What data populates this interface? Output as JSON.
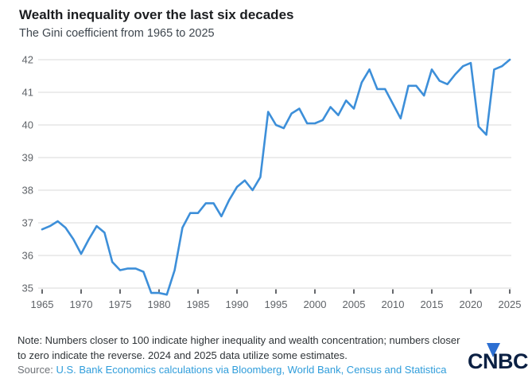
{
  "header": {
    "title": "Wealth inequality over the last six decades",
    "subtitle": "The Gini coefficient from 1965 to 2025"
  },
  "chart_data": {
    "type": "line",
    "title": "Wealth inequality over the last six decades",
    "subtitle": "The Gini coefficient from 1965 to 2025",
    "series_name": "Gini coefficient",
    "x": [
      1965,
      1966,
      1967,
      1968,
      1969,
      1970,
      1971,
      1972,
      1973,
      1974,
      1975,
      1976,
      1977,
      1978,
      1979,
      1980,
      1981,
      1982,
      1983,
      1984,
      1985,
      1986,
      1987,
      1988,
      1989,
      1990,
      1991,
      1992,
      1993,
      1994,
      1995,
      1996,
      1997,
      1998,
      1999,
      2000,
      2001,
      2002,
      2003,
      2004,
      2005,
      2006,
      2007,
      2008,
      2009,
      2010,
      2011,
      2012,
      2013,
      2014,
      2015,
      2016,
      2017,
      2018,
      2019,
      2020,
      2021,
      2022,
      2023,
      2024,
      2025
    ],
    "values": [
      36.8,
      36.9,
      37.05,
      36.85,
      36.5,
      36.05,
      36.5,
      36.9,
      36.7,
      35.8,
      35.55,
      35.6,
      35.6,
      35.5,
      34.85,
      34.85,
      34.8,
      35.55,
      36.85,
      37.3,
      37.3,
      37.6,
      37.6,
      37.2,
      37.7,
      38.1,
      38.3,
      38.0,
      38.4,
      40.4,
      40.0,
      39.9,
      40.35,
      40.5,
      40.05,
      40.05,
      40.15,
      40.55,
      40.3,
      40.75,
      40.5,
      41.3,
      41.7,
      41.1,
      41.1,
      40.65,
      40.2,
      41.2,
      41.2,
      40.9,
      41.7,
      41.35,
      41.25,
      41.55,
      41.8,
      41.9,
      39.95,
      39.7,
      41.7,
      41.8,
      42.0
    ],
    "xticks": [
      1965,
      1970,
      1975,
      1980,
      1985,
      1990,
      1995,
      2000,
      2005,
      2010,
      2015,
      2020,
      2025
    ],
    "yticks": [
      35,
      36,
      37,
      38,
      39,
      40,
      41,
      42
    ],
    "xlim": [
      1965,
      2025
    ],
    "ylim": [
      34.5,
      42.3
    ],
    "grid": "horizontal",
    "legend": "none",
    "line_color": "#3d8fd9",
    "gridline_color": "#d9d9d9",
    "axis_text_color": "#5f6368",
    "tick_mark_color": "#33363a"
  },
  "footer": {
    "note_line1": "Note: Numbers closer to 100 indicate higher inequality and wealth concentration; numbers closer",
    "note_line2": "to zero indicate the reverse. 2024 and 2025 data utilize some estimates.",
    "source_label": "Source:",
    "source_link": "U.S. Bank Economics calculations via Bloomberg, World Bank, Census and Statistica",
    "logo_text": "CNBC",
    "logo_navy": "#0b2043",
    "logo_blue": "#2c6fd2"
  }
}
